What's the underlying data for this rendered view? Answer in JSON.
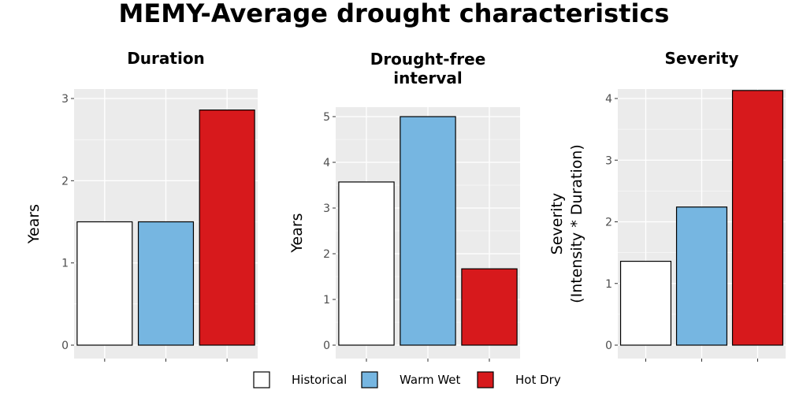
{
  "title": "MEMY-Average drought characteristics",
  "legend": {
    "position": "bottom",
    "items": [
      {
        "label": "Historical",
        "color": "#FFFFFF"
      },
      {
        "label": "Warm Wet",
        "color": "#76B6E1"
      },
      {
        "label": "Hot Dry",
        "color": "#D7191C"
      }
    ]
  },
  "colors": {
    "panel_bg": "#EBEBEB",
    "grid": "#FFFFFF",
    "bar_outline": "#000000",
    "tick_text": "#4D4D4D"
  },
  "chart_data": [
    {
      "type": "bar",
      "title": "Duration",
      "xlabel": "",
      "ylabel": "Years",
      "ylim": [
        0,
        3
      ],
      "yticks": [
        0,
        1,
        2,
        3
      ],
      "categories": [
        "Historical",
        "Warm Wet",
        "Hot Dry"
      ],
      "values": [
        1.5,
        1.5,
        2.86
      ],
      "grid": true
    },
    {
      "type": "bar",
      "title": "Drought-free interval",
      "title_lines": [
        "Drought-free",
        "interval"
      ],
      "xlabel": "",
      "ylabel": "Years",
      "ylim": [
        0,
        5
      ],
      "yticks": [
        0,
        1,
        2,
        3,
        4,
        5
      ],
      "categories": [
        "Historical",
        "Warm Wet",
        "Hot Dry"
      ],
      "values": [
        3.57,
        5.0,
        1.67
      ],
      "grid": true
    },
    {
      "type": "bar",
      "title": "Severity",
      "xlabel": "",
      "ylabel": "Severity\n(Intensity * Duration)",
      "ylabel_lines": [
        "Severity",
        "(Intensity * Duration)"
      ],
      "ylim": [
        0,
        4
      ],
      "yticks": [
        0,
        1,
        2,
        3,
        4
      ],
      "categories": [
        "Historical",
        "Warm Wet",
        "Hot Dry"
      ],
      "values": [
        1.36,
        2.24,
        4.13
      ],
      "grid": true
    }
  ]
}
